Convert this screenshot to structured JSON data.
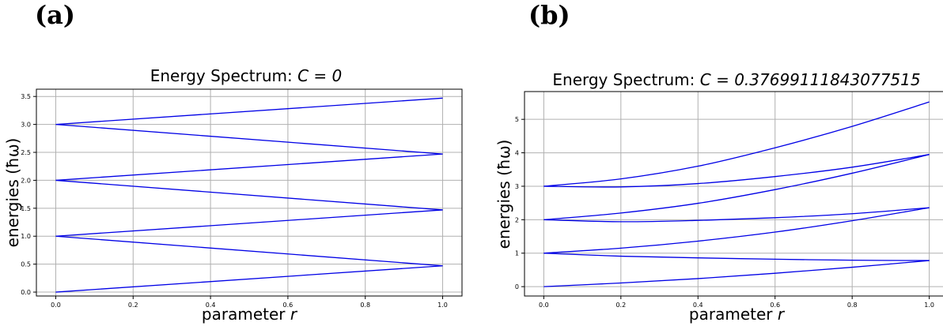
{
  "chart_data": [
    {
      "type": "line",
      "panel_label": "(a)",
      "title_prefix": "Energy Spectrum: ",
      "title_math": "C = 0",
      "xlabel_prefix": "parameter ",
      "xlabel_math": "r",
      "ylabel": "energies (ħω)",
      "xlim": [
        -0.05,
        1.05
      ],
      "ylim": [
        -0.07,
        3.63
      ],
      "xticks": [
        0.0,
        0.2,
        0.4,
        0.6,
        0.8,
        1.0
      ],
      "xtick_labels": [
        "0.0",
        "0.2",
        "0.4",
        "0.6",
        "0.8",
        "1.0"
      ],
      "yticks": [
        0.0,
        0.5,
        1.0,
        1.5,
        2.0,
        2.5,
        3.0,
        3.5
      ],
      "ytick_labels": [
        "0.0",
        "0.5",
        "1.0",
        "1.5",
        "2.0",
        "2.5",
        "3.0",
        "3.5"
      ],
      "grid": true,
      "line_color": "#0000e6",
      "series": [
        {
          "x": [
            0,
            1
          ],
          "y": [
            0.0,
            0.47
          ]
        },
        {
          "x": [
            0,
            1
          ],
          "y": [
            1.0,
            0.47
          ]
        },
        {
          "x": [
            0,
            1
          ],
          "y": [
            1.0,
            1.47
          ]
        },
        {
          "x": [
            0,
            1
          ],
          "y": [
            2.0,
            1.47
          ]
        },
        {
          "x": [
            0,
            1
          ],
          "y": [
            2.0,
            2.47
          ]
        },
        {
          "x": [
            0,
            1
          ],
          "y": [
            3.0,
            2.47
          ]
        },
        {
          "x": [
            0,
            1
          ],
          "y": [
            3.0,
            3.47
          ]
        }
      ]
    },
    {
      "type": "line",
      "panel_label": "(b)",
      "title_prefix": "Energy Spectrum: ",
      "title_math": "C = 0.37699111843077515",
      "xlabel_prefix": "parameter ",
      "xlabel_math": "r",
      "ylabel": "energies (ħω)",
      "xlim": [
        -0.05,
        1.05
      ],
      "ylim": [
        -0.28,
        5.83
      ],
      "xticks": [
        0.0,
        0.2,
        0.4,
        0.6,
        0.8,
        1.0
      ],
      "xtick_labels": [
        "0.0",
        "0.2",
        "0.4",
        "0.6",
        "0.8",
        "1.0"
      ],
      "yticks": [
        0,
        1,
        2,
        3,
        4,
        5
      ],
      "ytick_labels": [
        "0",
        "1",
        "2",
        "3",
        "4",
        "5"
      ],
      "grid": true,
      "line_color": "#0000e6",
      "series": [
        {
          "x": [
            0,
            0.2,
            0.4,
            0.6,
            0.8,
            1.0
          ],
          "y": [
            0.0,
            0.11,
            0.24,
            0.4,
            0.58,
            0.78
          ]
        },
        {
          "x": [
            0,
            0.2,
            0.4,
            0.6,
            0.8,
            1.0
          ],
          "y": [
            1.0,
            0.91,
            0.86,
            0.82,
            0.79,
            0.78
          ]
        },
        {
          "x": [
            0,
            0.2,
            0.4,
            0.6,
            0.8,
            1.0
          ],
          "y": [
            1.0,
            1.15,
            1.36,
            1.63,
            1.97,
            2.36
          ]
        },
        {
          "x": [
            0,
            0.2,
            0.4,
            0.6,
            0.8,
            1.0
          ],
          "y": [
            2.0,
            1.94,
            1.98,
            2.06,
            2.18,
            2.36
          ]
        },
        {
          "x": [
            0,
            0.2,
            0.4,
            0.6,
            0.8,
            1.0
          ],
          "y": [
            2.0,
            2.2,
            2.49,
            2.9,
            3.39,
            3.95
          ]
        },
        {
          "x": [
            0,
            0.2,
            0.4,
            0.6,
            0.8,
            1.0
          ],
          "y": [
            3.0,
            2.98,
            3.08,
            3.29,
            3.57,
            3.95
          ]
        },
        {
          "x": [
            0,
            0.2,
            0.4,
            0.6,
            0.8,
            1.0
          ],
          "y": [
            3.0,
            3.22,
            3.6,
            4.15,
            4.79,
            5.52
          ]
        }
      ]
    }
  ]
}
